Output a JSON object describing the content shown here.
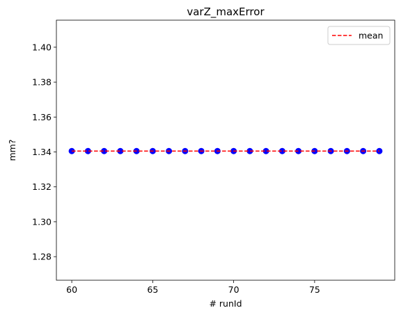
{
  "chart_data": {
    "type": "scatter",
    "title": "varZ_maxError",
    "xlabel": "# runId",
    "ylabel": "mm?",
    "xlim": [
      59.05,
      79.95
    ],
    "ylim": [
      1.2665,
      1.4155
    ],
    "xticks": [
      60,
      65,
      70,
      75
    ],
    "yticks": [
      1.28,
      1.3,
      1.32,
      1.34,
      1.36,
      1.38,
      1.4
    ],
    "ytick_labels": [
      "1.28",
      "1.30",
      "1.32",
      "1.34",
      "1.36",
      "1.38",
      "1.40"
    ],
    "grid": false,
    "legend_position": "top-right",
    "series": [
      {
        "kind": "points",
        "color": "#0000ff",
        "x": [
          60,
          61,
          62,
          63,
          64,
          65,
          66,
          67,
          68,
          69,
          70,
          71,
          72,
          73,
          74,
          75,
          76,
          77,
          78,
          79
        ],
        "y": [
          1.3405,
          1.3405,
          1.3405,
          1.3405,
          1.3405,
          1.3405,
          1.3405,
          1.3405,
          1.3405,
          1.3405,
          1.3405,
          1.3405,
          1.3405,
          1.3405,
          1.3405,
          1.3405,
          1.3405,
          1.3405,
          1.3405,
          1.3405
        ]
      },
      {
        "kind": "line",
        "name": "mean",
        "color": "#ff0000",
        "dash": "dashed",
        "x": [
          60,
          79
        ],
        "y": [
          1.3405,
          1.3405
        ]
      }
    ]
  }
}
